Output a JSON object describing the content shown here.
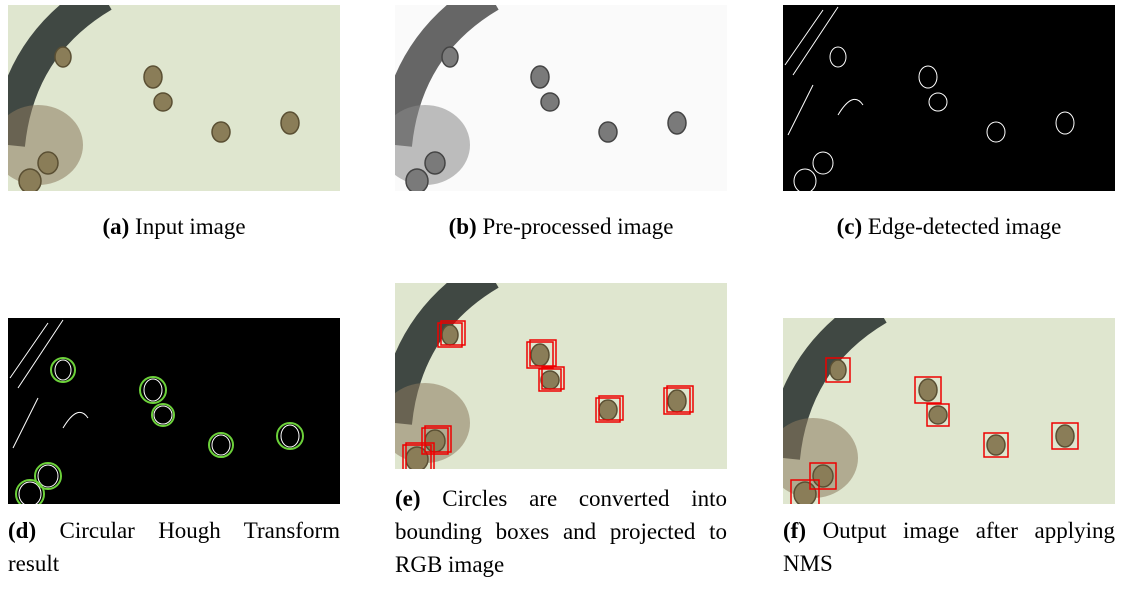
{
  "subfigures": [
    {
      "label": "(a)",
      "caption": "Input image"
    },
    {
      "label": "(b)",
      "caption": "Pre-processed image"
    },
    {
      "label": "(c)",
      "caption": "Edge-detected image"
    },
    {
      "label": "(d)",
      "caption": "Circular Hough Transform result"
    },
    {
      "label": "(e)",
      "caption": "Circles are converted into bounding boxes and projected to RGB image"
    },
    {
      "label": "(f)",
      "caption": "Output image after applying NMS"
    }
  ]
}
